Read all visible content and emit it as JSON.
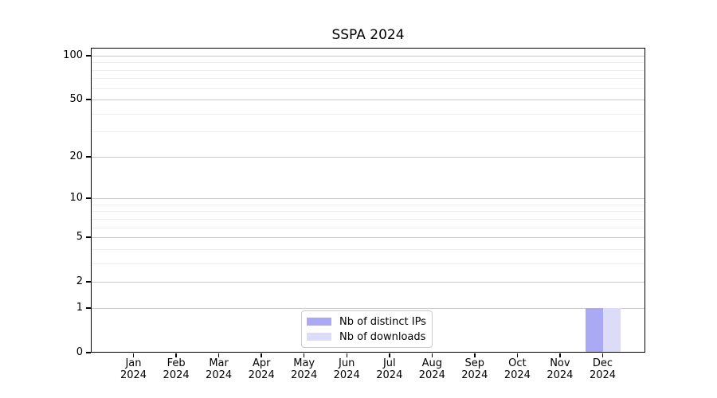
{
  "chart_data": {
    "type": "bar",
    "title": "SSPA 2024",
    "categories": [
      [
        "Jan",
        "2024"
      ],
      [
        "Feb",
        "2024"
      ],
      [
        "Mar",
        "2024"
      ],
      [
        "Apr",
        "2024"
      ],
      [
        "May",
        "2024"
      ],
      [
        "Jun",
        "2024"
      ],
      [
        "Jul",
        "2024"
      ],
      [
        "Aug",
        "2024"
      ],
      [
        "Sep",
        "2024"
      ],
      [
        "Oct",
        "2024"
      ],
      [
        "Nov",
        "2024"
      ],
      [
        "Dec",
        "2024"
      ]
    ],
    "series": [
      {
        "name": "Nb of distinct IPs",
        "color": "#a9a9f4",
        "values": [
          0,
          0,
          0,
          0,
          0,
          0,
          0,
          0,
          0,
          0,
          0,
          1
        ]
      },
      {
        "name": "Nb of downloads",
        "color": "#dcdcf8",
        "values": [
          0,
          0,
          0,
          0,
          0,
          0,
          0,
          0,
          0,
          0,
          0,
          1
        ]
      }
    ],
    "xlabel": "",
    "ylabel": "",
    "yscale": "log1p",
    "ylim": [
      0,
      113
    ],
    "yticks": [
      0,
      1,
      2,
      5,
      10,
      20,
      50,
      100
    ],
    "ytick_labels": [
      "0",
      "1",
      "2",
      "5",
      "10",
      "20",
      "50",
      "100"
    ],
    "yminorticks": [
      3,
      4,
      6,
      7,
      8,
      9,
      30,
      40,
      60,
      70,
      80,
      90
    ],
    "grid": "both",
    "legend": {
      "position": "lower center",
      "items": [
        "Nb of distinct IPs",
        "Nb of downloads"
      ]
    }
  }
}
